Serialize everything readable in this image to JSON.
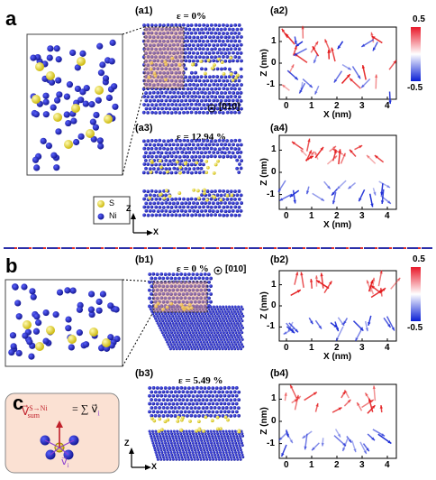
{
  "panels": {
    "a": "a",
    "b": "b",
    "c": "c"
  },
  "sub": {
    "a1": "(a1)",
    "a2": "(a2)",
    "a3": "(a3)",
    "a4": "(a4)",
    "b1": "(b1)",
    "b2": "(b2)",
    "b3": "(b3)",
    "b4": "(b4)"
  },
  "strain": {
    "a1": "ε = 0%",
    "a3": "ε = 12.94 %",
    "b1": "ε = 0 %",
    "b3": "ε = 5.49 %"
  },
  "direction_label": "[010]",
  "legend": {
    "s": "S",
    "ni": "Ni"
  },
  "axes_labels": {
    "z": "Z",
    "x": "X"
  },
  "plot": {
    "ylabel": "Z (nm)",
    "xlabel": "X (nm)",
    "xticks": [
      "0",
      "1",
      "2",
      "3",
      "4"
    ],
    "yticks": [
      "1",
      "0",
      "-1"
    ]
  },
  "colorbar": {
    "max": "0.5",
    "min": "-0.5",
    "top_color": "#e8182a",
    "bottom_color": "#0a1fd6"
  },
  "formula": {
    "lhs": "V⃗",
    "sup": "S→Ni",
    "sub": "sum",
    "rhs": "= ∑ v⃗",
    "rsub": "i",
    "tip_label": "v⃗",
    "tip_sub": "i"
  },
  "colors": {
    "ni": "#1b1fb5",
    "s": "#f1e21d",
    "red": "#e31a1c",
    "blue": "#1f2fd6",
    "divider": "#2b2fa8",
    "divider_accent": "#e0302a",
    "inset_bg": "#fbe1d3"
  }
}
